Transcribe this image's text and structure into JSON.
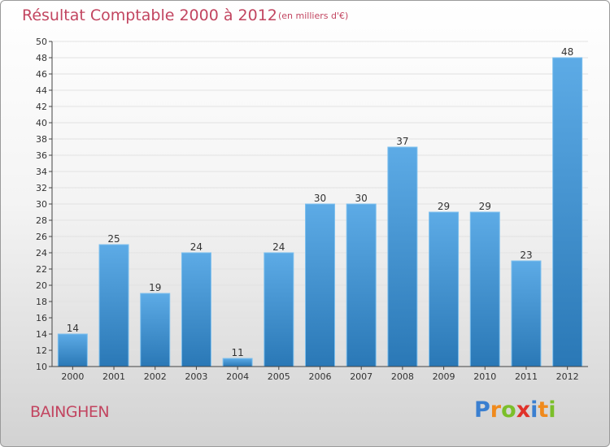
{
  "header": {
    "title": "Résultat Comptable 2000 à 2012",
    "subtitle": "(en milliers d'€)"
  },
  "footer": {
    "city": "BAINGHEN",
    "brand": "Proxiti",
    "brand_letters": [
      {
        "ch": "P",
        "color": "#3a7fd0"
      },
      {
        "ch": "r",
        "color": "#f08a1c"
      },
      {
        "ch": "o",
        "color": "#7bbf2a"
      },
      {
        "ch": "x",
        "color": "#e0322a"
      },
      {
        "ch": "i",
        "color": "#3a7fd0"
      },
      {
        "ch": "t",
        "color": "#f08a1c"
      },
      {
        "ch": "i",
        "color": "#7bbf2a"
      }
    ]
  },
  "chart_data": {
    "type": "bar",
    "title": "Résultat Comptable 2000 à 2012",
    "subtitle": "(en milliers d'€)",
    "xlabel": "",
    "ylabel": "",
    "categories": [
      "2000",
      "2001",
      "2002",
      "2003",
      "2004",
      "2005",
      "2006",
      "2007",
      "2008",
      "2009",
      "2010",
      "2011",
      "2012"
    ],
    "values": [
      14,
      25,
      19,
      24,
      11,
      24,
      30,
      30,
      37,
      29,
      29,
      23,
      48
    ],
    "ylim": [
      10,
      50
    ],
    "yticks": [
      10,
      12,
      14,
      16,
      18,
      20,
      22,
      24,
      26,
      28,
      30,
      32,
      34,
      36,
      38,
      40,
      42,
      44,
      46,
      48,
      50
    ],
    "grid": true,
    "colors": {
      "bar_light": "#5dabe6",
      "bar_dark": "#2a78b6",
      "label": "#333333",
      "axis": "#444444"
    }
  }
}
